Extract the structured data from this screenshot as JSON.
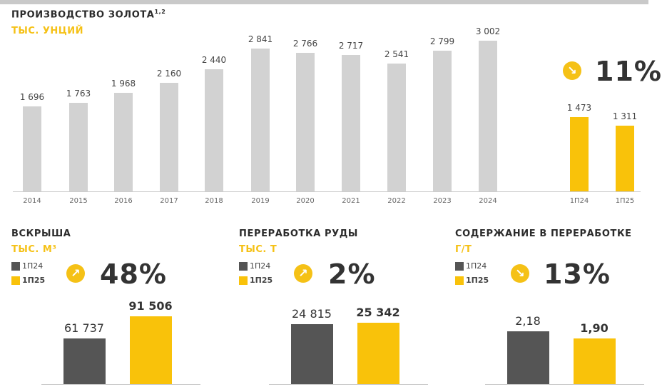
{
  "colors": {
    "gray_bar": "#d2d2d2",
    "yellow": "#f9c20a",
    "dark": "#555555",
    "accent": "#f5c116"
  },
  "chart_data": [
    {
      "type": "bar",
      "title": "ПРОИЗВОДСТВО ЗОЛОТА",
      "title_sup": "1,2",
      "unit": "ТЫС. УНЦИЙ",
      "categories": [
        "2014",
        "2015",
        "2016",
        "2017",
        "2018",
        "2019",
        "2020",
        "2021",
        "2022",
        "2023",
        "2024",
        "1П24",
        "1П25"
      ],
      "values": [
        1696,
        1763,
        1968,
        2160,
        2440,
        2841,
        2766,
        2717,
        2541,
        2799,
        3002,
        1473,
        1311
      ],
      "labels": [
        "1 696",
        "1 763",
        "1 968",
        "2 160",
        "2 440",
        "2 841",
        "2 766",
        "2 717",
        "2 541",
        "2 799",
        "3 002",
        "1 473",
        "1 311"
      ],
      "change": {
        "direction": "down",
        "icon": "arrow-down-right-icon",
        "value": "11%"
      }
    },
    {
      "type": "bar",
      "title": "ВСКРЫША",
      "unit": "ТЫС. М³",
      "categories": [
        "1П24",
        "1П25"
      ],
      "values": [
        61737,
        91506
      ],
      "labels": [
        "61 737",
        "91 506"
      ],
      "change": {
        "direction": "up",
        "icon": "arrow-up-right-icon",
        "value": "48%"
      }
    },
    {
      "type": "bar",
      "title": "ПЕРЕРАБОТКА РУДЫ",
      "unit": "ТЫС. Т",
      "categories": [
        "1П24",
        "1П25"
      ],
      "values": [
        24815,
        25342
      ],
      "labels": [
        "24 815",
        "25 342"
      ],
      "change": {
        "direction": "up",
        "icon": "arrow-up-right-icon",
        "value": "2%"
      }
    },
    {
      "type": "bar",
      "title": "СОДЕРЖАНИЕ В ПЕРЕРАБОТКЕ",
      "unit": "Г/Т",
      "categories": [
        "1П24",
        "1П25"
      ],
      "values": [
        2.18,
        1.9
      ],
      "labels": [
        "2,18",
        "1,90"
      ],
      "change": {
        "direction": "down",
        "icon": "arrow-down-right-icon",
        "value": "13%"
      }
    }
  ]
}
